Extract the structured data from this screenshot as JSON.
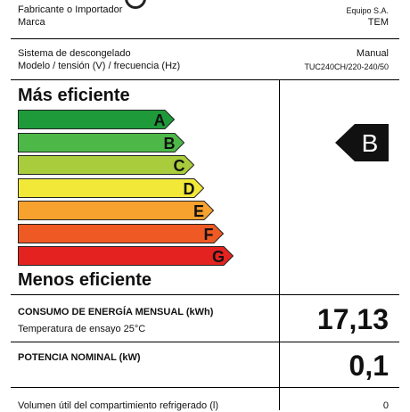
{
  "header": {
    "manufacturer_label": "Fabricante o Importador",
    "manufacturer_value": "Equipo S.A.",
    "brand_label": "Marca",
    "brand_value": "TEM",
    "defrost_label": "Sistema de descongelado",
    "defrost_value": "Manual",
    "model_label": "Modelo / tensión (V) / frecuencia (Hz)",
    "model_value": "TUC240CH/220-240/50"
  },
  "scale": {
    "top_label": "Más eficiente",
    "bottom_label": "Menos eficiente",
    "classes": [
      {
        "letter": "A",
        "color": "#1f9a3a"
      },
      {
        "letter": "B",
        "color": "#4db848"
      },
      {
        "letter": "C",
        "color": "#a8cc3c"
      },
      {
        "letter": "D",
        "color": "#f2e838"
      },
      {
        "letter": "E",
        "color": "#f7a12e"
      },
      {
        "letter": "F",
        "color": "#ef5a24"
      },
      {
        "letter": "G",
        "color": "#e42320"
      }
    ],
    "rating": "B",
    "rating_color": "#111111"
  },
  "consumption": {
    "label": "CONSUMO DE ENERGÍA MENSUAL (kWh)",
    "sublabel": "Temperatura de ensayo 25°C",
    "value": "17,13"
  },
  "power": {
    "label": "POTENCIA NOMINAL (kW)",
    "value": "0,1"
  },
  "volume": {
    "label": "Volumen útil del compartimiento refrigerado (l)",
    "value": "0"
  }
}
